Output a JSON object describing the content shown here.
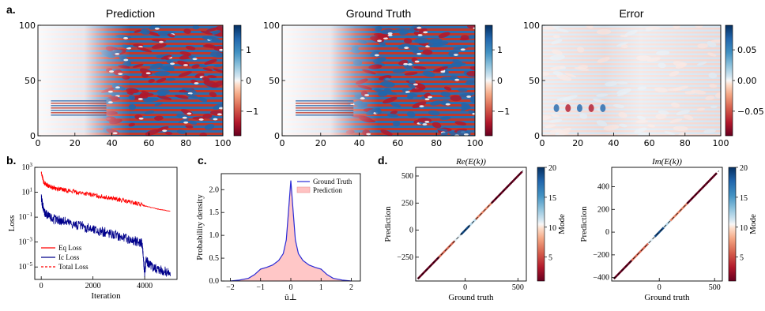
{
  "chart_data": [
    {
      "panel": "a.",
      "type": "heatmap",
      "title": "Prediction",
      "xlim": [
        0,
        100
      ],
      "ylim": [
        0,
        100
      ],
      "xticks": [
        "0",
        "20",
        "40",
        "60",
        "80",
        "100"
      ],
      "yticks": [
        "0",
        "50",
        "100"
      ],
      "colorbar": {
        "ticks": [
          "1",
          "0",
          "−1"
        ],
        "tick_values": [
          1,
          0,
          -1
        ],
        "range": [
          -1.8,
          1.8
        ],
        "cmap": "RdBu"
      }
    },
    {
      "type": "heatmap",
      "title": "Ground Truth",
      "xlim": [
        0,
        100
      ],
      "ylim": [
        0,
        100
      ],
      "xticks": [
        "0",
        "20",
        "40",
        "60",
        "80",
        "100"
      ],
      "yticks": [
        "0",
        "50",
        "100"
      ],
      "colorbar": {
        "ticks": [
          "1",
          "0",
          "−1"
        ],
        "tick_values": [
          1,
          0,
          -1
        ],
        "range": [
          -1.8,
          1.8
        ],
        "cmap": "RdBu"
      }
    },
    {
      "type": "heatmap",
      "title": "Error",
      "xlim": [
        0,
        100
      ],
      "ylim": [
        0,
        100
      ],
      "xticks": [
        "0",
        "20",
        "40",
        "60",
        "80",
        "100"
      ],
      "yticks": [
        "0",
        "50",
        "100"
      ],
      "colorbar": {
        "ticks": [
          "0.05",
          "0.00",
          "−0.05"
        ],
        "tick_values": [
          0.05,
          0.0,
          -0.05
        ],
        "range": [
          -0.09,
          0.09
        ],
        "cmap": "RdBu"
      }
    },
    {
      "panel": "b.",
      "type": "line",
      "xlabel": "Iteration",
      "ylabel": "Loss",
      "xlim": [
        -250,
        5250
      ],
      "ylim": [
        1e-06,
        1000.0
      ],
      "yscale": "log",
      "xticks": [
        "0",
        "2000",
        "4000"
      ],
      "yticks": [
        {
          "base": "10",
          "exp": "3"
        },
        {
          "base": "10",
          "exp": "1"
        },
        {
          "base": "10",
          "exp": "−1"
        },
        {
          "base": "10",
          "exp": "−3"
        },
        {
          "base": "10",
          "exp": "−5"
        }
      ],
      "legend": "lower-left",
      "series": [
        {
          "name": "Eq Loss",
          "color": "#ff0000",
          "style": "solid",
          "x": [
            0,
            100,
            300,
            600,
            1000,
            1500,
            2000,
            2500,
            3000,
            3500,
            3900,
            4000,
            4500,
            5000
          ],
          "y": [
            400,
            60,
            30,
            20,
            14,
            9,
            6,
            4,
            2.5,
            1.5,
            1.0,
            0.8,
            0.45,
            0.3
          ]
        },
        {
          "name": "Ic Loss",
          "color": "#00008b",
          "style": "solid",
          "x": [
            0,
            100,
            300,
            600,
            1000,
            1500,
            2000,
            2500,
            3000,
            3500,
            3800,
            3900,
            4000,
            4050,
            4300,
            4600,
            5000
          ],
          "y": [
            3,
            0.3,
            0.1,
            0.06,
            0.04,
            0.02,
            0.01,
            0.006,
            0.003,
            0.0015,
            0.001,
            0.0008,
            3e-06,
            3e-05,
            1e-05,
            6e-06,
            3e-06
          ]
        },
        {
          "name": "Total Loss",
          "color": "#ff0000",
          "style": "dashed",
          "x": [
            0,
            100,
            300,
            600,
            1000,
            1500,
            2000,
            2500,
            3000,
            3500,
            3900,
            4000,
            4500,
            5000
          ],
          "y": [
            400,
            60,
            30,
            20,
            14,
            9,
            6,
            4,
            2.5,
            1.5,
            1.0,
            0.8,
            0.45,
            0.3
          ]
        }
      ]
    },
    {
      "panel": "c.",
      "type": "area",
      "xlabel": "û⊥",
      "ylabel": "Probability density",
      "xlim": [
        -2.3,
        2.3
      ],
      "ylim": [
        0,
        2.35
      ],
      "xticks": [
        "−2",
        "−1",
        "0",
        "1",
        "2"
      ],
      "yticks": [
        "0.0",
        "0.5",
        "1.0",
        "1.5",
        "2.0"
      ],
      "legend": "top-right",
      "series": [
        {
          "name": "Ground Truth",
          "color": "#2b2bd6",
          "style": "line",
          "x": [
            -2.0,
            -1.7,
            -1.4,
            -1.2,
            -1.0,
            -0.8,
            -0.6,
            -0.4,
            -0.25,
            -0.15,
            -0.08,
            0.0,
            0.08,
            0.15,
            0.25,
            0.4,
            0.6,
            0.8,
            1.0,
            1.2,
            1.4,
            1.7,
            2.0
          ],
          "y": [
            0.0,
            0.02,
            0.06,
            0.14,
            0.26,
            0.3,
            0.35,
            0.45,
            0.6,
            0.9,
            1.5,
            2.2,
            1.5,
            0.9,
            0.6,
            0.45,
            0.35,
            0.3,
            0.26,
            0.14,
            0.06,
            0.02,
            0.0
          ]
        },
        {
          "name": "Prediction",
          "color": "#ff9a9a",
          "style": "fill",
          "x": [
            -2.0,
            -1.7,
            -1.4,
            -1.2,
            -1.0,
            -0.8,
            -0.6,
            -0.4,
            -0.25,
            -0.15,
            -0.08,
            0.0,
            0.08,
            0.15,
            0.25,
            0.4,
            0.6,
            0.8,
            1.0,
            1.2,
            1.4,
            1.7,
            2.0
          ],
          "y": [
            0.0,
            0.02,
            0.06,
            0.14,
            0.25,
            0.3,
            0.35,
            0.45,
            0.6,
            0.88,
            1.45,
            2.15,
            1.45,
            0.88,
            0.6,
            0.45,
            0.35,
            0.3,
            0.25,
            0.14,
            0.06,
            0.02,
            0.0
          ]
        }
      ]
    },
    {
      "panel": "d.",
      "type": "scatter",
      "title": "Re(E(k))",
      "xlabel": "Ground truth",
      "ylabel": "Prediction",
      "xlim": [
        -470,
        580
      ],
      "ylim": [
        -470,
        580
      ],
      "xticks": [
        "0",
        "500"
      ],
      "xtick_values": [
        0,
        500
      ],
      "yticks": [
        "500",
        "250",
        "0",
        "−250"
      ],
      "ytick_values": [
        500,
        250,
        0,
        -250
      ],
      "segments": [
        {
          "x0": -450,
          "x1": -250,
          "mode": 1
        },
        {
          "x0": -250,
          "x1": -100,
          "mode": 6
        },
        {
          "x0": -100,
          "x1": -40,
          "mode": 11
        },
        {
          "x0": -40,
          "x1": 40,
          "mode": 19
        },
        {
          "x0": 40,
          "x1": 100,
          "mode": 12
        },
        {
          "x0": 100,
          "x1": 250,
          "mode": 7
        },
        {
          "x0": 250,
          "x1": 540,
          "mode": 1
        }
      ],
      "colorbar": {
        "label": "Mode",
        "ticks": [
          "20",
          "15",
          "10",
          "5"
        ],
        "tick_values": [
          20,
          15,
          10,
          5
        ],
        "range": [
          1,
          20
        ],
        "cmap": "RdBu"
      }
    },
    {
      "type": "scatter",
      "title": "Im(E(k))",
      "xlabel": "Ground truth",
      "ylabel": "Prediction",
      "xlim": [
        -430,
        570
      ],
      "ylim": [
        -430,
        570
      ],
      "xticks": [
        "0",
        "500"
      ],
      "xtick_values": [
        0,
        500
      ],
      "yticks": [
        "400",
        "200",
        "0",
        "−200",
        "−400"
      ],
      "ytick_values": [
        400,
        200,
        0,
        -200,
        -400
      ],
      "segments": [
        {
          "x0": -410,
          "x1": -250,
          "mode": 1
        },
        {
          "x0": -250,
          "x1": -100,
          "mode": 6
        },
        {
          "x0": -100,
          "x1": -40,
          "mode": 11
        },
        {
          "x0": -40,
          "x1": 40,
          "mode": 19
        },
        {
          "x0": 40,
          "x1": 100,
          "mode": 12
        },
        {
          "x0": 100,
          "x1": 250,
          "mode": 7
        },
        {
          "x0": 250,
          "x1": 520,
          "mode": 1
        }
      ],
      "colorbar": {
        "label": "Mode",
        "ticks": [
          "20",
          "15",
          "10",
          "5"
        ],
        "tick_values": [
          20,
          15,
          10,
          5
        ],
        "range": [
          1,
          20
        ],
        "cmap": "RdBu"
      }
    }
  ]
}
